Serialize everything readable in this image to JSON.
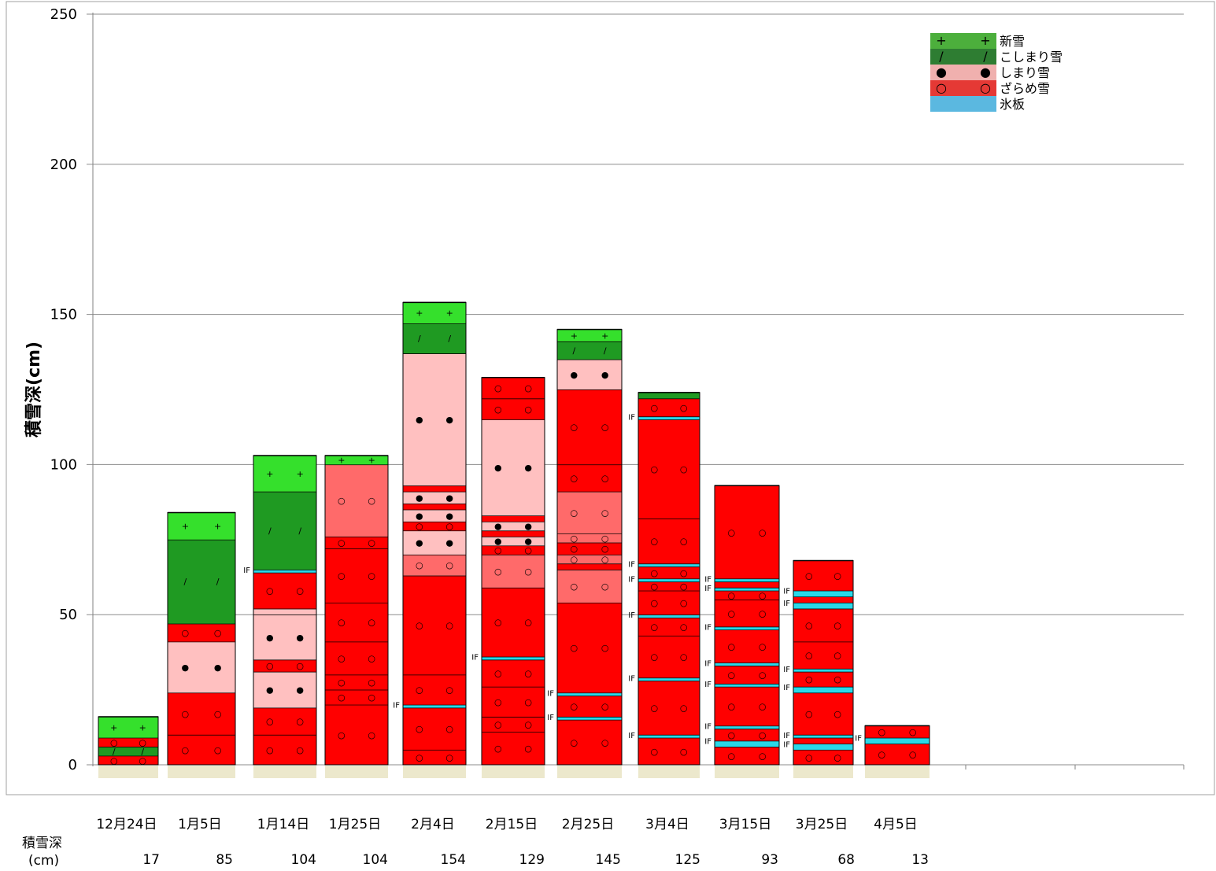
{
  "chart_data": {
    "type": "bar",
    "ylabel": "積雪深(cm)",
    "ylim": [
      0,
      250
    ],
    "yticks": [
      0,
      50,
      100,
      150,
      200,
      250
    ],
    "grid": true,
    "legend_position": "top-right",
    "categories": [
      "12月24日",
      "1月5日",
      "1月14日",
      "1月25日",
      "2月4日",
      "2月15日",
      "2月25日",
      "3月4日",
      "3月15日",
      "3月25日",
      "4月5日"
    ],
    "depth_row_label": "積雪深",
    "depth_row_unit": "(cm)",
    "depths": [
      17,
      85,
      104,
      104,
      154,
      129,
      145,
      125,
      93,
      68,
      13
    ],
    "legend": [
      {
        "label": "新雪",
        "color": "#4caf3c",
        "marker": "+"
      },
      {
        "label": "こしまり雪",
        "color": "#2e7d32",
        "marker": "/"
      },
      {
        "label": "しまり雪",
        "color": "#f0b0ae",
        "marker": "●"
      },
      {
        "label": "ざらめ雪",
        "color": "#e53935",
        "marker": "○"
      },
      {
        "label": "氷板",
        "color": "#5bb8e0",
        "marker": ""
      }
    ],
    "profiles": [
      {
        "date": "12月24日",
        "layers": [
          {
            "b": 0,
            "t": 3,
            "type": "zarame"
          },
          {
            "b": 3,
            "t": 6,
            "type": "koshimari"
          },
          {
            "b": 6,
            "t": 9,
            "type": "zarame"
          },
          {
            "b": 9,
            "t": 16,
            "type": "shinsetsu"
          }
        ]
      },
      {
        "date": "1月5日",
        "layers": [
          {
            "b": 0,
            "t": 10,
            "type": "zarame"
          },
          {
            "b": 10,
            "t": 24,
            "type": "zarame"
          },
          {
            "b": 24,
            "t": 41,
            "type": "shimari_light"
          },
          {
            "b": 41,
            "t": 47,
            "type": "zarame"
          },
          {
            "b": 47,
            "t": 75,
            "type": "koshimari"
          },
          {
            "b": 75,
            "t": 84,
            "type": "shinsetsu"
          }
        ]
      },
      {
        "date": "1月14日",
        "layers": [
          {
            "b": 0,
            "t": 10,
            "type": "zarame"
          },
          {
            "b": 10,
            "t": 19,
            "type": "zarame"
          },
          {
            "b": 19,
            "t": 31,
            "type": "shimari_light"
          },
          {
            "b": 31,
            "t": 35,
            "type": "zarame"
          },
          {
            "b": 35,
            "t": 50,
            "type": "shimari_light"
          },
          {
            "b": 50,
            "t": 52,
            "type": "shimari_light"
          },
          {
            "b": 52,
            "t": 64,
            "type": "zarame"
          },
          {
            "b": 64,
            "t": 65,
            "type": "ice"
          },
          {
            "b": 65,
            "t": 91,
            "type": "koshimari"
          },
          {
            "b": 91,
            "t": 103,
            "type": "shinsetsu"
          }
        ]
      },
      {
        "date": "1月25日",
        "layers": [
          {
            "b": 0,
            "t": 20,
            "type": "zarame"
          },
          {
            "b": 20,
            "t": 25,
            "type": "zarame"
          },
          {
            "b": 25,
            "t": 30,
            "type": "zarame"
          },
          {
            "b": 30,
            "t": 41,
            "type": "zarame"
          },
          {
            "b": 41,
            "t": 54,
            "type": "zarame"
          },
          {
            "b": 54,
            "t": 72,
            "type": "zarame"
          },
          {
            "b": 72,
            "t": 76,
            "type": "zarame"
          },
          {
            "b": 76,
            "t": 100,
            "type": "zarame_light"
          },
          {
            "b": 100,
            "t": 103,
            "type": "shinsetsu"
          }
        ]
      },
      {
        "date": "2月4日",
        "layers": [
          {
            "b": 0,
            "t": 5,
            "type": "zarame"
          },
          {
            "b": 5,
            "t": 19,
            "type": "zarame"
          },
          {
            "b": 19,
            "t": 20,
            "type": "ice"
          },
          {
            "b": 20,
            "t": 30,
            "type": "zarame"
          },
          {
            "b": 30,
            "t": 63,
            "type": "zarame"
          },
          {
            "b": 63,
            "t": 70,
            "type": "zarame_light"
          },
          {
            "b": 70,
            "t": 78,
            "type": "shimari_light"
          },
          {
            "b": 78,
            "t": 81,
            "type": "zarame"
          },
          {
            "b": 81,
            "t": 85,
            "type": "shimari_light"
          },
          {
            "b": 85,
            "t": 87,
            "type": "zarame"
          },
          {
            "b": 87,
            "t": 91,
            "type": "shimari_light"
          },
          {
            "b": 91,
            "t": 93,
            "type": "zarame"
          },
          {
            "b": 93,
            "t": 137,
            "type": "shimari_light"
          },
          {
            "b": 137,
            "t": 147,
            "type": "koshimari"
          },
          {
            "b": 147,
            "t": 154,
            "type": "shinsetsu"
          }
        ]
      },
      {
        "date": "2月15日",
        "layers": [
          {
            "b": 0,
            "t": 11,
            "type": "zarame"
          },
          {
            "b": 11,
            "t": 16,
            "type": "zarame"
          },
          {
            "b": 16,
            "t": 26,
            "type": "zarame"
          },
          {
            "b": 26,
            "t": 35,
            "type": "zarame"
          },
          {
            "b": 35,
            "t": 36,
            "type": "ice"
          },
          {
            "b": 36,
            "t": 59,
            "type": "zarame"
          },
          {
            "b": 59,
            "t": 70,
            "type": "zarame_light"
          },
          {
            "b": 70,
            "t": 73,
            "type": "zarame"
          },
          {
            "b": 73,
            "t": 76,
            "type": "shimari_light"
          },
          {
            "b": 76,
            "t": 78,
            "type": "zarame"
          },
          {
            "b": 78,
            "t": 81,
            "type": "shimari_light"
          },
          {
            "b": 81,
            "t": 83,
            "type": "zarame"
          },
          {
            "b": 83,
            "t": 115,
            "type": "shimari_light"
          },
          {
            "b": 115,
            "t": 122,
            "type": "zarame"
          },
          {
            "b": 122,
            "t": 129,
            "type": "zarame"
          }
        ]
      },
      {
        "date": "2月25日",
        "layers": [
          {
            "b": 0,
            "t": 15,
            "type": "zarame"
          },
          {
            "b": 15,
            "t": 16,
            "type": "ice"
          },
          {
            "b": 16,
            "t": 23,
            "type": "zarame"
          },
          {
            "b": 23,
            "t": 24,
            "type": "ice"
          },
          {
            "b": 24,
            "t": 54,
            "type": "zarame"
          },
          {
            "b": 54,
            "t": 65,
            "type": "zarame_light"
          },
          {
            "b": 65,
            "t": 67,
            "type": "zarame"
          },
          {
            "b": 67,
            "t": 70,
            "type": "zarame_light"
          },
          {
            "b": 70,
            "t": 74,
            "type": "zarame"
          },
          {
            "b": 74,
            "t": 77,
            "type": "zarame_light"
          },
          {
            "b": 77,
            "t": 91,
            "type": "zarame_light"
          },
          {
            "b": 91,
            "t": 100,
            "type": "zarame"
          },
          {
            "b": 100,
            "t": 125,
            "type": "zarame"
          },
          {
            "b": 125,
            "t": 135,
            "type": "shimari_light"
          },
          {
            "b": 135,
            "t": 141,
            "type": "koshimari"
          },
          {
            "b": 141,
            "t": 145,
            "type": "shinsetsu"
          }
        ]
      },
      {
        "date": "3月4日",
        "layers": [
          {
            "b": 0,
            "t": 9,
            "type": "zarame"
          },
          {
            "b": 9,
            "t": 10,
            "type": "ice"
          },
          {
            "b": 10,
            "t": 28,
            "type": "zarame"
          },
          {
            "b": 28,
            "t": 29,
            "type": "ice"
          },
          {
            "b": 29,
            "t": 43,
            "type": "zarame"
          },
          {
            "b": 43,
            "t": 49,
            "type": "zarame"
          },
          {
            "b": 49,
            "t": 50,
            "type": "ice"
          },
          {
            "b": 50,
            "t": 58,
            "type": "zarame"
          },
          {
            "b": 58,
            "t": 61,
            "type": "zarame"
          },
          {
            "b": 61,
            "t": 62,
            "type": "ice"
          },
          {
            "b": 62,
            "t": 66,
            "type": "zarame"
          },
          {
            "b": 66,
            "t": 67,
            "type": "ice"
          },
          {
            "b": 67,
            "t": 82,
            "type": "zarame"
          },
          {
            "b": 82,
            "t": 115,
            "type": "zarame"
          },
          {
            "b": 115,
            "t": 116,
            "type": "ice"
          },
          {
            "b": 116,
            "t": 122,
            "type": "zarame"
          },
          {
            "b": 122,
            "t": 124,
            "type": "koshimari"
          }
        ]
      },
      {
        "date": "3月15日",
        "layers": [
          {
            "b": 0,
            "t": 6,
            "type": "zarame"
          },
          {
            "b": 6,
            "t": 8,
            "type": "ice"
          },
          {
            "b": 8,
            "t": 12,
            "type": "zarame"
          },
          {
            "b": 12,
            "t": 13,
            "type": "ice"
          },
          {
            "b": 13,
            "t": 26,
            "type": "zarame"
          },
          {
            "b": 26,
            "t": 27,
            "type": "ice"
          },
          {
            "b": 27,
            "t": 33,
            "type": "zarame"
          },
          {
            "b": 33,
            "t": 34,
            "type": "ice"
          },
          {
            "b": 34,
            "t": 45,
            "type": "zarame"
          },
          {
            "b": 45,
            "t": 46,
            "type": "ice"
          },
          {
            "b": 46,
            "t": 55,
            "type": "zarame"
          },
          {
            "b": 55,
            "t": 58,
            "type": "zarame"
          },
          {
            "b": 58,
            "t": 59,
            "type": "ice"
          },
          {
            "b": 59,
            "t": 61,
            "type": "zarame"
          },
          {
            "b": 61,
            "t": 62,
            "type": "ice"
          },
          {
            "b": 62,
            "t": 93,
            "type": "zarame"
          }
        ]
      },
      {
        "date": "3月25日",
        "layers": [
          {
            "b": 0,
            "t": 5,
            "type": "zarame"
          },
          {
            "b": 5,
            "t": 7,
            "type": "ice"
          },
          {
            "b": 7,
            "t": 9,
            "type": "zarame"
          },
          {
            "b": 9,
            "t": 10,
            "type": "ice"
          },
          {
            "b": 10,
            "t": 24,
            "type": "zarame"
          },
          {
            "b": 24,
            "t": 26,
            "type": "ice"
          },
          {
            "b": 26,
            "t": 31,
            "type": "zarame"
          },
          {
            "b": 31,
            "t": 32,
            "type": "ice"
          },
          {
            "b": 32,
            "t": 41,
            "type": "zarame"
          },
          {
            "b": 41,
            "t": 52,
            "type": "zarame"
          },
          {
            "b": 52,
            "t": 54,
            "type": "ice"
          },
          {
            "b": 54,
            "t": 56,
            "type": "zarame"
          },
          {
            "b": 56,
            "t": 58,
            "type": "ice"
          },
          {
            "b": 58,
            "t": 68,
            "type": "zarame"
          }
        ]
      },
      {
        "date": "4月5日",
        "layers": [
          {
            "b": 0,
            "t": 7,
            "type": "zarame"
          },
          {
            "b": 7,
            "t": 9,
            "type": "ice"
          },
          {
            "b": 9,
            "t": 13,
            "type": "zarame"
          }
        ]
      }
    ]
  }
}
